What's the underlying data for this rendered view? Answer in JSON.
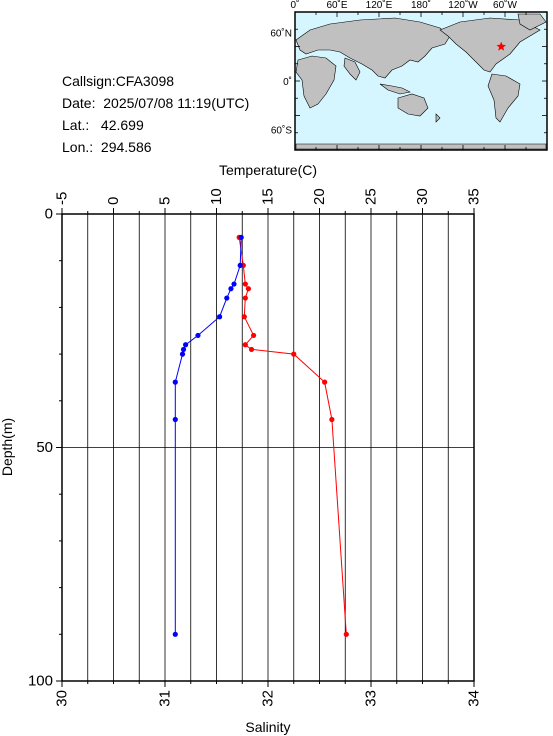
{
  "info": {
    "callsign": "Callsign:CFA3098",
    "date": "Date:  2025/07/08 11:19(UTC)",
    "lat": "Lat.:   42.699",
    "lon": "Lon.:  294.586"
  },
  "map": {
    "lon_labels": [
      "0˚",
      "60˚E",
      "120˚E",
      "180˚",
      "120˚W",
      "60˚W"
    ],
    "lat_labels": [
      "60˚N",
      "0˚",
      "60˚S"
    ],
    "ocean_color": "#d6f6ff",
    "land_color": "#c0c0c0",
    "marker": {
      "lon": 294.586,
      "lat": 42.699,
      "symbol": "star",
      "color": "#ff0000"
    }
  },
  "chart_data": {
    "type": "line",
    "title": "",
    "xlabel_top": "Temperature(C)",
    "xlabel_bottom": "Salinity",
    "ylabel": "Depth(m)",
    "temperature_ticks": [
      "-5",
      "0",
      "5",
      "10",
      "15",
      "20",
      "25",
      "30",
      "35"
    ],
    "salinity_ticks": [
      "30",
      "31",
      "32",
      "33",
      "34"
    ],
    "depth_ticks": [
      "0",
      "50",
      "100"
    ],
    "temperature_range": [
      -5,
      35
    ],
    "salinity_range": [
      30,
      34
    ],
    "depth_range": [
      0,
      100
    ],
    "grid": true,
    "series": [
      {
        "name": "",
        "axis": "temperature",
        "color": "#ff0000",
        "points": [
          [
            12.2,
            5
          ],
          [
            12.6,
            11
          ],
          [
            12.8,
            15
          ],
          [
            13.1,
            16
          ],
          [
            12.8,
            18
          ],
          [
            12.7,
            22
          ],
          [
            13.6,
            26
          ],
          [
            12.8,
            28
          ],
          [
            13.4,
            29
          ],
          [
            17.5,
            30
          ],
          [
            20.5,
            36
          ],
          [
            21.2,
            44
          ],
          [
            22.6,
            90
          ]
        ]
      },
      {
        "name": "",
        "axis": "salinity",
        "color": "#0000ff",
        "points": [
          [
            31.74,
            5
          ],
          [
            31.73,
            11
          ],
          [
            31.67,
            15
          ],
          [
            31.64,
            16
          ],
          [
            31.6,
            18
          ],
          [
            31.53,
            22
          ],
          [
            31.32,
            26
          ],
          [
            31.2,
            28
          ],
          [
            31.18,
            29
          ],
          [
            31.17,
            30
          ],
          [
            31.1,
            36
          ],
          [
            31.1,
            44
          ],
          [
            31.1,
            90
          ]
        ]
      }
    ]
  }
}
